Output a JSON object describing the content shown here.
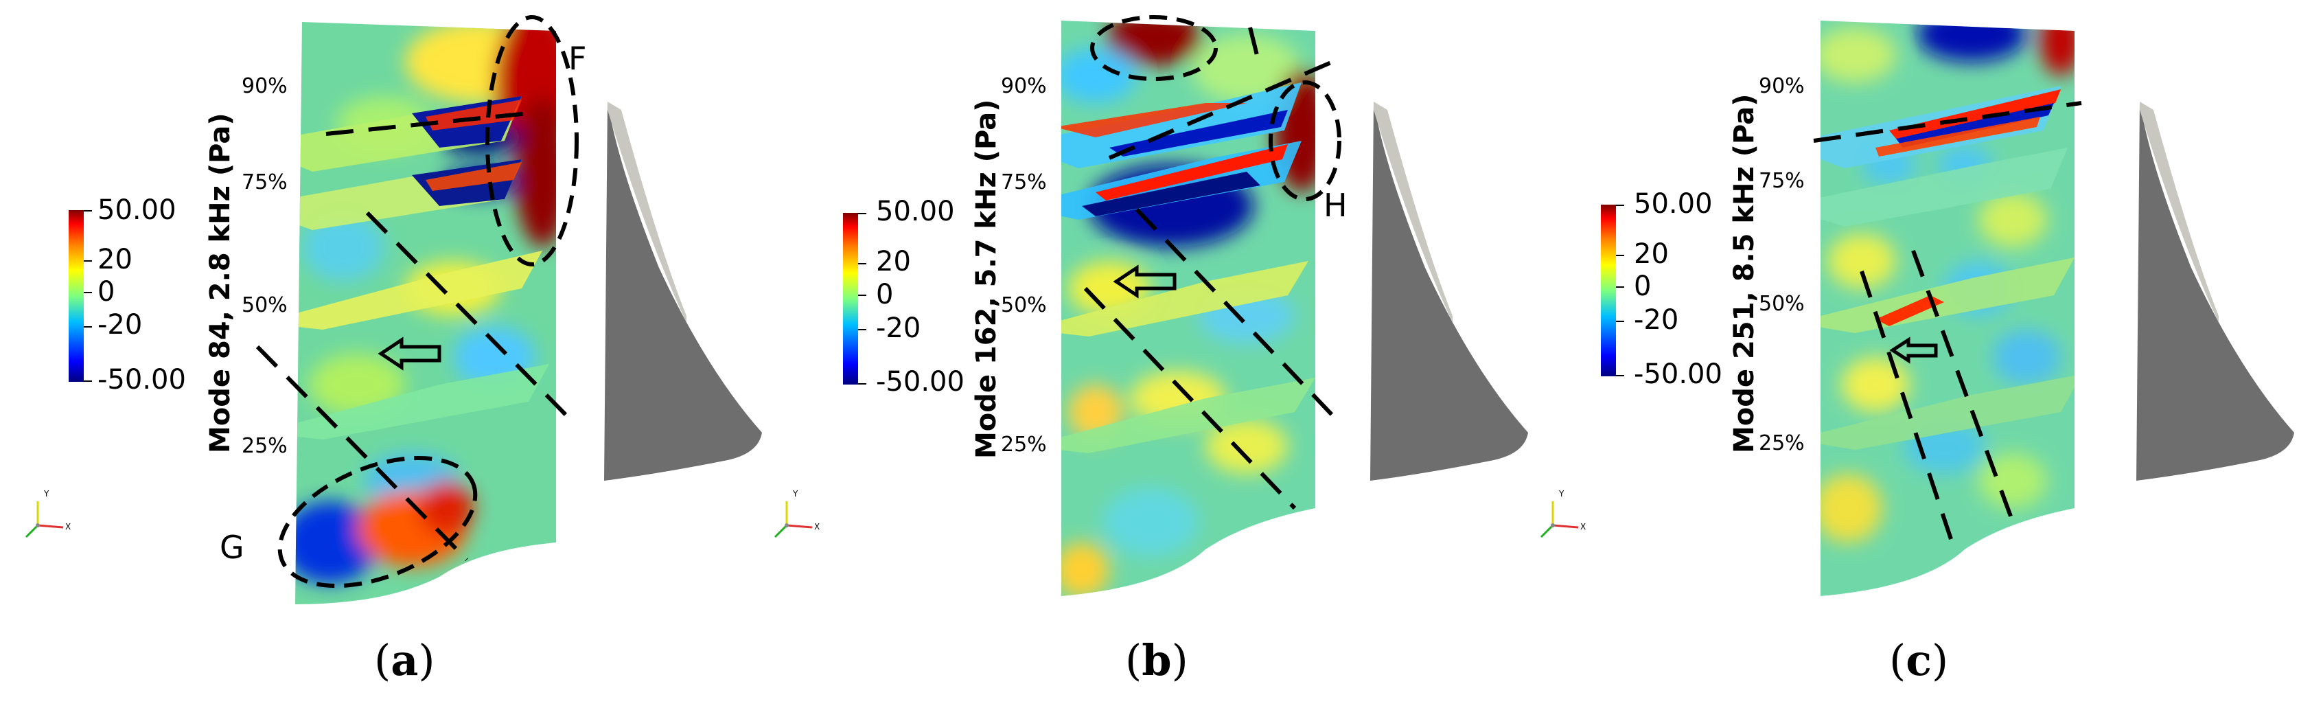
{
  "panels": [
    {
      "caption_letter": "a",
      "colorbar_title": "Mode 84, 2.8 kHz (Pa)",
      "colorbar_ticks": [
        "50.00",
        "20",
        "0",
        "-20",
        "-50.00"
      ],
      "span_labels": [
        "90%",
        "75%",
        "50%",
        "25%"
      ],
      "callouts": [
        "F",
        "G"
      ]
    },
    {
      "caption_letter": "b",
      "colorbar_title": "Mode 162, 5.7 kHz (Pa)",
      "colorbar_ticks": [
        "50.00",
        "20",
        "0",
        "-20",
        "-50.00"
      ],
      "span_labels": [
        "90%",
        "75%",
        "50%",
        "25%"
      ],
      "callouts": [
        "H"
      ]
    },
    {
      "caption_letter": "c",
      "colorbar_title": "Mode 251, 8.5 kHz (Pa)",
      "colorbar_ticks": [
        "50.00",
        "20",
        "0",
        "-20",
        "-50.00"
      ],
      "span_labels": [
        "90%",
        "75%",
        "50%",
        "25%"
      ],
      "callouts": []
    }
  ],
  "axes_triad": {
    "y": "Y",
    "x": "X"
  },
  "colormap": [
    "#00007f",
    "#0000ff",
    "#00bfff",
    "#40e0d0",
    "#7fff7f",
    "#ffff00",
    "#ff7f00",
    "#ff0000",
    "#7f0000"
  ],
  "field_base_color": "#62d6a8",
  "blade_color": "#6e6e6e"
}
